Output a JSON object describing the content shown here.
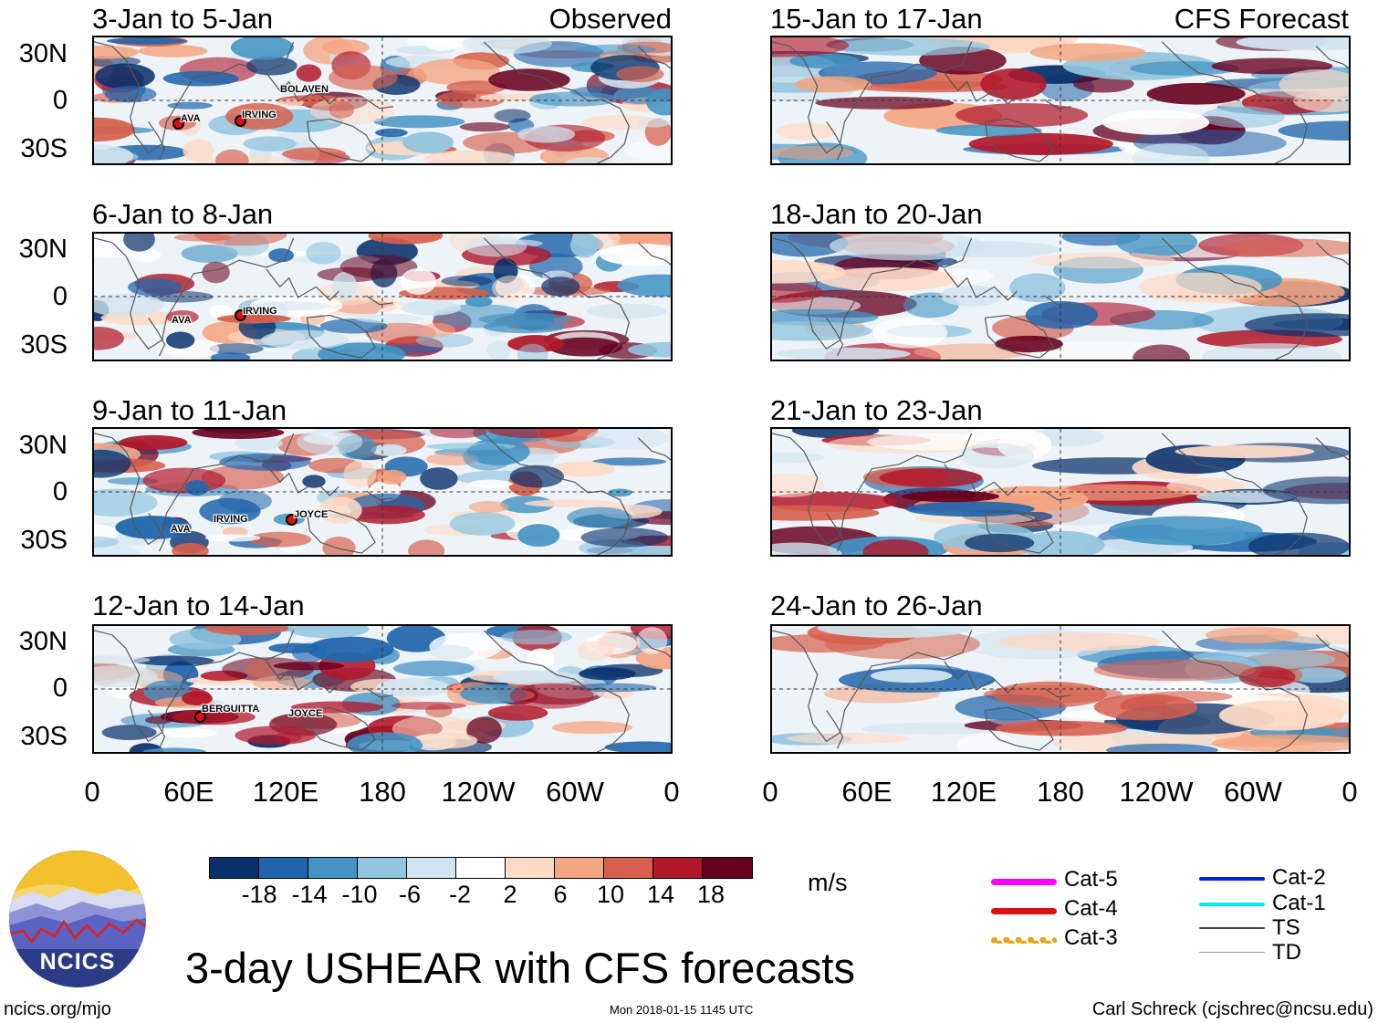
{
  "figure": {
    "title": "3-day USHEAR with CFS forecasts",
    "units": "m/s",
    "footer_left": "ncics.org/mjo",
    "footer_timestamp": "Mon 2018-01-15 1145 UTC",
    "footer_author": "Carl Schreck (cjschrec@ncsu.edu)",
    "logo_text": "NCICS"
  },
  "columns": {
    "left_tag": "Observed",
    "right_tag": "CFS Forecast"
  },
  "lat_labels": [
    "30N",
    "0",
    "30S"
  ],
  "lon_labels": [
    "0",
    "60E",
    "120E",
    "180",
    "120W",
    "60W",
    "0"
  ],
  "panels_left": [
    {
      "title": "3-Jan to 5-Jan"
    },
    {
      "title": "6-Jan to 8-Jan"
    },
    {
      "title": "9-Jan to 11-Jan"
    },
    {
      "title": "12-Jan to 14-Jan"
    }
  ],
  "panels_right": [
    {
      "title": "15-Jan to 17-Jan"
    },
    {
      "title": "18-Jan to 20-Jan"
    },
    {
      "title": "21-Jan to 23-Jan"
    },
    {
      "title": "24-Jan to 26-Jan"
    }
  ],
  "storms": {
    "p0": [
      "AVA",
      "IRVING",
      "BOLAVEN"
    ],
    "p1": [
      "AVA",
      "IRVING"
    ],
    "p2": [
      "AVA",
      "IRVING",
      "JOYCE"
    ],
    "p3": [
      "BERGUITTA",
      "JOYCE"
    ]
  },
  "colorbar": {
    "labels": [
      "-18",
      "-14",
      "-10",
      "-6",
      "-2",
      "2",
      "6",
      "10",
      "14",
      "18"
    ],
    "colors": [
      "#08306b",
      "#2166ac",
      "#4393c3",
      "#92c5de",
      "#d1e5f0",
      "#ffffff",
      "#fddbc7",
      "#f4a582",
      "#d6604d",
      "#b2182b",
      "#67001f"
    ]
  },
  "legend": {
    "items": [
      {
        "label": "Cat-5",
        "color": "#ff00ff"
      },
      {
        "label": "Cat-4",
        "color": "#dd1111"
      },
      {
        "label": "Cat-3",
        "color": "#e8a317"
      },
      {
        "label": "Cat-2",
        "color": "#0022dd"
      },
      {
        "label": "Cat-1",
        "color": "#00eeee"
      },
      {
        "label": "TS",
        "color": "#444444"
      },
      {
        "label": "TD",
        "color": "#999999"
      }
    ]
  }
}
